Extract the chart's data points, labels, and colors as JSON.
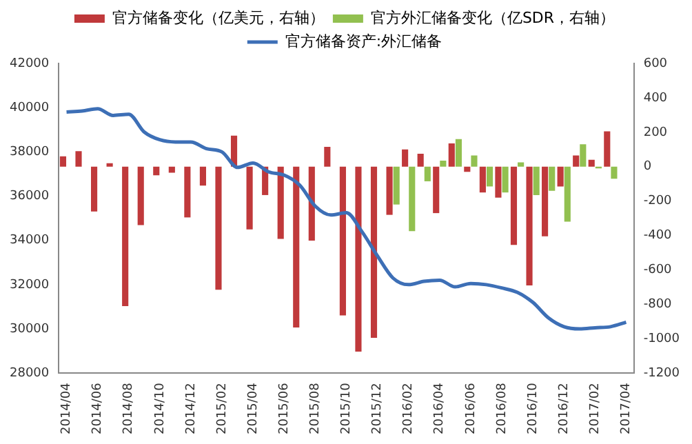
{
  "chart_data": {
    "type": "bar",
    "legend": "top",
    "grid": false,
    "marker": "none",
    "categories": [
      "2014/04",
      null,
      "2014/06",
      null,
      "2014/08",
      null,
      "2014/10",
      null,
      "2014/12",
      null,
      "2015/02",
      null,
      "2015/04",
      null,
      "2015/06",
      null,
      "2015/08",
      null,
      "2015/10",
      null,
      "2015/12",
      null,
      "2016/02",
      null,
      "2016/04",
      null,
      "2016/06",
      null,
      "2016/08",
      null,
      "2016/10",
      null,
      "2016/12",
      null,
      "2017/02",
      null,
      "2017/04"
    ],
    "ylim": [
      28000,
      42000
    ],
    "yticks": [
      28000,
      30000,
      32000,
      34000,
      36000,
      38000,
      40000,
      42000
    ],
    "y2lim": [
      -1200,
      600
    ],
    "y2ticks": [
      -1200,
      -1000,
      -800,
      -600,
      -400,
      -200,
      0,
      200,
      400,
      600
    ],
    "series": [
      {
        "name": "官方储备变化（亿美元，右轴）",
        "axis": "y2",
        "color": "#c0393b",
        "values": [
          60,
          90,
          -260,
          20,
          -810,
          -340,
          -50,
          -35,
          -295,
          -110,
          -715,
          180,
          -365,
          -165,
          -420,
          -935,
          -430,
          115,
          -865,
          -1075,
          -995,
          -280,
          100,
          75,
          -270,
          135,
          -30,
          -150,
          -180,
          -455,
          -690,
          -405,
          -115,
          65,
          40,
          205,
          null
        ]
      },
      {
        "name": "官方外汇储备变化（亿SDR，右轴）",
        "axis": "y2",
        "color": "#92c050",
        "values": [
          null,
          null,
          null,
          null,
          null,
          null,
          null,
          null,
          null,
          null,
          null,
          null,
          null,
          null,
          null,
          null,
          null,
          null,
          null,
          null,
          null,
          -220,
          -375,
          -85,
          35,
          160,
          65,
          -115,
          -150,
          25,
          -165,
          -140,
          -320,
          130,
          -10,
          -70,
          null
        ]
      },
      {
        "name": "官方储备资产:外汇储备",
        "type": "line",
        "axis": "y",
        "color": "#3d6fb6",
        "values": [
          39800,
          39850,
          39950,
          39650,
          39700,
          38900,
          38550,
          38450,
          38450,
          38150,
          38000,
          37300,
          37500,
          37100,
          36950,
          36500,
          35550,
          35150,
          35250,
          34400,
          33300,
          32300,
          32000,
          32150,
          32200,
          31900,
          32050,
          32000,
          31850,
          31650,
          31200,
          30500,
          30100,
          30000,
          30050,
          30100,
          30300
        ]
      }
    ]
  }
}
